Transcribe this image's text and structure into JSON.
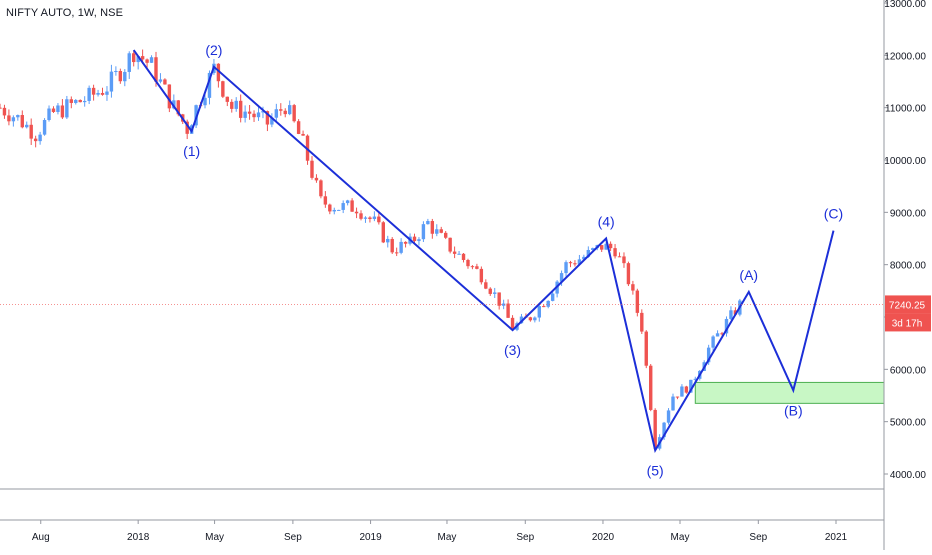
{
  "header": {
    "title": "NIFTY AUTO, 1W, NSE"
  },
  "colors": {
    "up": "#5b9cf6",
    "down": "#ef5350",
    "wave": "#1c2fd8",
    "zone_fill": "#c8f7c5",
    "zone_border": "#4caf50",
    "price_tag": "#ef5350",
    "axis_text": "#131722",
    "separator": "#9598a1"
  },
  "price_tag": {
    "value": "7240.25",
    "countdown": "3d 17h"
  },
  "chart_data": {
    "type": "candlestick",
    "title": "NIFTY AUTO, 1W, NSE",
    "ylim": [
      3400,
      13200
    ],
    "y_ticks": [
      4000,
      5000,
      6000,
      7000,
      8000,
      9000,
      10000,
      11000,
      12000,
      13000
    ],
    "y_tick_labels": [
      "4000.00",
      "5000.00",
      "6000.00",
      "7000.00",
      "8000.00",
      "9000.00",
      "10000.00",
      "11000.00",
      "12000.00",
      "13000.00"
    ],
    "x_ticks": [
      {
        "label": "Aug",
        "date": "2017-08-01"
      },
      {
        "label": "2018",
        "date": "2018-01-01"
      },
      {
        "label": "May",
        "date": "2018-05-01"
      },
      {
        "label": "Sep",
        "date": "2018-09-01"
      },
      {
        "label": "2019",
        "date": "2019-01-01"
      },
      {
        "label": "May",
        "date": "2019-05-01"
      },
      {
        "label": "Sep",
        "date": "2019-09-01"
      },
      {
        "label": "2020",
        "date": "2020-01-01"
      },
      {
        "label": "May",
        "date": "2020-05-01"
      },
      {
        "label": "Sep",
        "date": "2020-09-01"
      },
      {
        "label": "2021",
        "date": "2021-01-01"
      }
    ],
    "price_path": [
      [
        "2017-05-29",
        11000
      ],
      [
        "2017-06-26",
        10800
      ],
      [
        "2017-07-24",
        10500
      ],
      [
        "2017-08-21",
        10900
      ],
      [
        "2017-09-18",
        11050
      ],
      [
        "2017-10-16",
        11200
      ],
      [
        "2017-11-13",
        11400
      ],
      [
        "2017-12-11",
        11800
      ],
      [
        "2017-12-25",
        12080
      ],
      [
        "2018-01-22",
        11800
      ],
      [
        "2018-02-19",
        11150
      ],
      [
        "2018-03-19",
        10600
      ],
      [
        "2018-04-09",
        11200
      ],
      [
        "2018-04-30",
        11750
      ],
      [
        "2018-05-28",
        11000
      ],
      [
        "2018-06-25",
        10900
      ],
      [
        "2018-07-23",
        10700
      ],
      [
        "2018-08-20",
        11050
      ],
      [
        "2018-09-17",
        10300
      ],
      [
        "2018-10-15",
        9200
      ],
      [
        "2018-11-12",
        9100
      ],
      [
        "2018-12-10",
        9100
      ],
      [
        "2019-01-07",
        8800
      ],
      [
        "2019-02-04",
        8300
      ],
      [
        "2019-03-04",
        8400
      ],
      [
        "2019-04-01",
        8800
      ],
      [
        "2019-04-29",
        8400
      ],
      [
        "2019-05-27",
        8100
      ],
      [
        "2019-06-24",
        7800
      ],
      [
        "2019-07-22",
        7300
      ],
      [
        "2019-08-12",
        6800
      ],
      [
        "2019-09-09",
        7000
      ],
      [
        "2019-10-07",
        7400
      ],
      [
        "2019-11-04",
        8000
      ],
      [
        "2019-12-02",
        8150
      ],
      [
        "2019-12-30",
        8350
      ],
      [
        "2020-01-20",
        8300
      ],
      [
        "2020-02-10",
        7700
      ],
      [
        "2020-03-02",
        6800
      ],
      [
        "2020-03-23",
        4550
      ],
      [
        "2020-04-20",
        5500
      ],
      [
        "2020-05-18",
        5700
      ],
      [
        "2020-06-15",
        6400
      ],
      [
        "2020-07-13",
        6900
      ],
      [
        "2020-08-03",
        7240
      ]
    ],
    "wave_count": [
      {
        "label": "(1)",
        "date": "2018-03-26",
        "price": 10550,
        "label_pos": "below"
      },
      {
        "label": "(2)",
        "date": "2018-04-30",
        "price": 11780,
        "label_pos": "above"
      },
      {
        "label": "(3)",
        "date": "2019-08-12",
        "price": 6750,
        "label_pos": "below"
      },
      {
        "label": "(4)",
        "date": "2020-01-06",
        "price": 8500,
        "label_pos": "above"
      },
      {
        "label": "(5)",
        "date": "2020-03-23",
        "price": 4450,
        "label_pos": "below"
      },
      {
        "label": "(A)",
        "date": "2020-08-17",
        "price": 7480,
        "label_pos": "above"
      },
      {
        "label": "(B)",
        "date": "2020-10-26",
        "price": 5600,
        "label_pos": "below"
      },
      {
        "label": "(C)",
        "date": "2020-12-28",
        "price": 8650,
        "label_pos": "above"
      }
    ],
    "wave_start": {
      "date": "2017-12-25",
      "price": 12100
    },
    "support_zone": {
      "from": "2020-05-25",
      "to": "2021-03-22",
      "low": 5350,
      "high": 5750
    },
    "last_price": 7240.25
  }
}
